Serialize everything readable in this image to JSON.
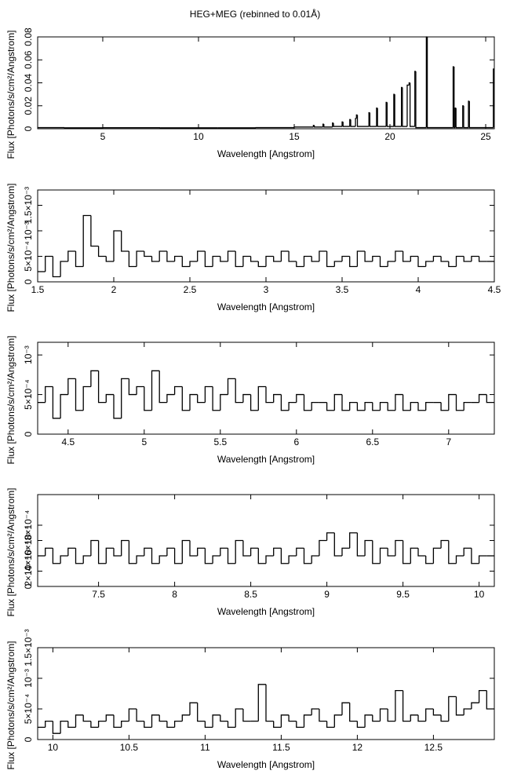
{
  "chart_data": [
    {
      "type": "line",
      "step": true,
      "title": "HEG+MEG (rebinned to 0.01Å)",
      "x_label": "Wavelength [Angstrom]",
      "y_label": "Flux [Photons/s/cm²/Angstrom]",
      "color": "#000000",
      "xlim": [
        1.6,
        25.45
      ],
      "ylim": [
        0,
        0.08
      ],
      "xticks": [
        5,
        10,
        15,
        20,
        25
      ],
      "yticks": [
        0,
        0.02,
        0.04,
        0.06,
        0.08
      ],
      "x": [
        1.6,
        3,
        5,
        8,
        11,
        13,
        15,
        16.0,
        16.05,
        16.5,
        16.55,
        17.0,
        17.05,
        17.5,
        17.55,
        17.9,
        17.95,
        18.2,
        18.25,
        18.3,
        18.9,
        18.95,
        19.3,
        19.35,
        19.8,
        19.85,
        20.2,
        20.25,
        20.6,
        20.65,
        20.9,
        21.0,
        21.05,
        21.3,
        21.35,
        21.9,
        21.95,
        23.3,
        23.35,
        23.4,
        23.45,
        23.8,
        23.85,
        24.1,
        24.15,
        25.4
      ],
      "values": [
        0.001,
        0.0008,
        0.0009,
        0.0008,
        0.0008,
        0.001,
        0.0015,
        0.003,
        0.0015,
        0.004,
        0.0015,
        0.005,
        0.002,
        0.006,
        0.002,
        0.008,
        0.002,
        0.009,
        0.012,
        0.002,
        0.014,
        0.002,
        0.018,
        0.002,
        0.023,
        0.002,
        0.03,
        0.002,
        0.036,
        0.002,
        0.038,
        0.04,
        0.002,
        0.05,
        0.001,
        0.08,
        0.001,
        0.054,
        0.001,
        0.018,
        0.001,
        0.02,
        0.001,
        0.024,
        0.001,
        0.052
      ]
    },
    {
      "type": "line",
      "step": true,
      "x_label": "Wavelength [Angstrom]",
      "y_label": "Flux [Photons/s/cm²/Angstrom]",
      "color": "#000000",
      "xlim": [
        1.5,
        4.5
      ],
      "ylim": [
        0,
        0.0018
      ],
      "xticks": [
        1.5,
        2,
        2.5,
        3,
        3.5,
        4,
        4.5
      ],
      "yticks": [
        0,
        {
          "value": 0.0005,
          "label": "5×10⁻⁴"
        },
        {
          "value": 0.001,
          "label": "10⁻³"
        },
        {
          "value": 0.0015,
          "label": "1.5×10⁻³"
        }
      ],
      "x": [
        1.5,
        1.55,
        1.6,
        1.65,
        1.7,
        1.75,
        1.8,
        1.85,
        1.9,
        1.95,
        2.0,
        2.05,
        2.1,
        2.15,
        2.2,
        2.25,
        2.3,
        2.35,
        2.4,
        2.45,
        2.5,
        2.55,
        2.6,
        2.65,
        2.7,
        2.75,
        2.8,
        2.85,
        2.9,
        2.95,
        3.0,
        3.05,
        3.1,
        3.15,
        3.2,
        3.25,
        3.3,
        3.35,
        3.4,
        3.45,
        3.5,
        3.55,
        3.6,
        3.65,
        3.7,
        3.75,
        3.8,
        3.85,
        3.9,
        3.95,
        4.0,
        4.05,
        4.1,
        4.15,
        4.2,
        4.25,
        4.3,
        4.35,
        4.4,
        4.45
      ],
      "values": [
        0.0002,
        0.0005,
        0.0001,
        0.0004,
        0.0006,
        0.0003,
        0.0013,
        0.0007,
        0.0005,
        0.0004,
        0.001,
        0.0006,
        0.0003,
        0.0006,
        0.0005,
        0.0004,
        0.0006,
        0.0004,
        0.0005,
        0.0003,
        0.0004,
        0.0006,
        0.0003,
        0.0005,
        0.0004,
        0.0006,
        0.0003,
        0.0005,
        0.0004,
        0.0003,
        0.0005,
        0.0004,
        0.0006,
        0.0004,
        0.0003,
        0.0005,
        0.0004,
        0.0006,
        0.0003,
        0.0004,
        0.0005,
        0.0003,
        0.0006,
        0.0004,
        0.0005,
        0.0003,
        0.0004,
        0.0006,
        0.0004,
        0.0005,
        0.0003,
        0.0004,
        0.0005,
        0.0004,
        0.0003,
        0.0005,
        0.0004,
        0.0005,
        0.0004,
        0.0004
      ]
    },
    {
      "type": "line",
      "step": true,
      "x_label": "Wavelength [Angstrom]",
      "y_label": "Flux [Photons/s/cm²/Angstrom]",
      "color": "#000000",
      "xlim": [
        4.3,
        7.3
      ],
      "ylim": [
        0,
        0.00116
      ],
      "xticks": [
        4.5,
        5,
        5.5,
        6,
        6.5,
        7
      ],
      "yticks": [
        0,
        {
          "value": 0.0005,
          "label": "5×10⁻⁴"
        },
        {
          "value": 0.001,
          "label": "10⁻³"
        }
      ],
      "x": [
        4.3,
        4.35,
        4.4,
        4.45,
        4.5,
        4.55,
        4.6,
        4.65,
        4.7,
        4.75,
        4.8,
        4.85,
        4.9,
        4.95,
        5.0,
        5.05,
        5.1,
        5.15,
        5.2,
        5.25,
        5.3,
        5.35,
        5.4,
        5.45,
        5.5,
        5.55,
        5.6,
        5.65,
        5.7,
        5.75,
        5.8,
        5.85,
        5.9,
        5.95,
        6.0,
        6.05,
        6.1,
        6.15,
        6.2,
        6.25,
        6.3,
        6.35,
        6.4,
        6.45,
        6.5,
        6.55,
        6.6,
        6.65,
        6.7,
        6.75,
        6.8,
        6.85,
        6.9,
        6.95,
        7.0,
        7.05,
        7.1,
        7.15,
        7.2,
        7.25
      ],
      "values": [
        0.0004,
        0.0006,
        0.0002,
        0.0005,
        0.0007,
        0.0003,
        0.0006,
        0.0008,
        0.0004,
        0.0005,
        0.0002,
        0.0007,
        0.0005,
        0.0006,
        0.0003,
        0.0008,
        0.0004,
        0.0005,
        0.0006,
        0.0003,
        0.0005,
        0.0004,
        0.0006,
        0.0003,
        0.0005,
        0.0007,
        0.0004,
        0.0005,
        0.0003,
        0.0006,
        0.0004,
        0.0005,
        0.0003,
        0.0004,
        0.0005,
        0.0003,
        0.0004,
        0.0004,
        0.0003,
        0.0005,
        0.0003,
        0.0004,
        0.0003,
        0.0004,
        0.0003,
        0.0004,
        0.0003,
        0.0005,
        0.0003,
        0.0004,
        0.0003,
        0.0004,
        0.0004,
        0.0003,
        0.0005,
        0.0003,
        0.0004,
        0.0004,
        0.0005,
        0.0004
      ]
    },
    {
      "type": "line",
      "step": true,
      "x_label": "Wavelength [Angstrom]",
      "y_label": "Flux [Photons/s/cm²/Angstrom]",
      "color": "#000000",
      "xlim": [
        7.1,
        10.1
      ],
      "ylim": [
        0,
        0.0012
      ],
      "xticks": [
        7.5,
        8,
        8.5,
        9,
        9.5,
        10
      ],
      "yticks": [
        0,
        {
          "value": 0.0002,
          "label": "2×10⁻⁴"
        },
        {
          "value": 0.0004,
          "label": "4×10⁻⁴"
        },
        {
          "value": 0.0006,
          "label": "6×10⁻⁴"
        },
        {
          "value": 0.0008,
          "label": "8×10⁻⁴"
        }
      ],
      "x": [
        7.1,
        7.15,
        7.2,
        7.25,
        7.3,
        7.35,
        7.4,
        7.45,
        7.5,
        7.55,
        7.6,
        7.65,
        7.7,
        7.75,
        7.8,
        7.85,
        7.9,
        7.95,
        8.0,
        8.05,
        8.1,
        8.15,
        8.2,
        8.25,
        8.3,
        8.35,
        8.4,
        8.45,
        8.5,
        8.55,
        8.6,
        8.65,
        8.7,
        8.75,
        8.8,
        8.85,
        8.9,
        8.95,
        9.0,
        9.05,
        9.1,
        9.15,
        9.2,
        9.25,
        9.3,
        9.35,
        9.4,
        9.45,
        9.5,
        9.55,
        9.6,
        9.65,
        9.7,
        9.75,
        9.8,
        9.85,
        9.9,
        9.95,
        10.0,
        10.05
      ],
      "values": [
        0.0004,
        0.0005,
        0.0003,
        0.0004,
        0.0005,
        0.0003,
        0.0004,
        0.0006,
        0.0003,
        0.0005,
        0.0004,
        0.0006,
        0.0003,
        0.0004,
        0.0005,
        0.0003,
        0.0004,
        0.0005,
        0.0003,
        0.0006,
        0.0004,
        0.0005,
        0.0003,
        0.0004,
        0.0005,
        0.0003,
        0.0006,
        0.0004,
        0.0005,
        0.0003,
        0.0004,
        0.0005,
        0.0003,
        0.0004,
        0.0005,
        0.0003,
        0.0004,
        0.0006,
        0.0007,
        0.0004,
        0.0005,
        0.0007,
        0.0004,
        0.0006,
        0.0003,
        0.0005,
        0.0004,
        0.0006,
        0.0003,
        0.0005,
        0.0004,
        0.0003,
        0.0005,
        0.0006,
        0.0003,
        0.0004,
        0.0005,
        0.0003,
        0.0004,
        0.0004
      ]
    },
    {
      "type": "line",
      "step": true,
      "x_label": "Wavelength [Angstrom]",
      "y_label": "Flux [Photons/s/cm²/Angstrom]",
      "color": "#000000",
      "xlim": [
        9.9,
        12.9
      ],
      "ylim": [
        0,
        0.0015
      ],
      "xticks": [
        10,
        10.5,
        11,
        11.5,
        12,
        12.5
      ],
      "yticks": [
        0,
        {
          "value": 0.0005,
          "label": "5×10⁻⁴"
        },
        {
          "value": 0.001,
          "label": "10⁻³"
        },
        {
          "value": 0.0015,
          "label": "1.5×10⁻³"
        }
      ],
      "x": [
        9.9,
        9.95,
        10.0,
        10.05,
        10.1,
        10.15,
        10.2,
        10.25,
        10.3,
        10.35,
        10.4,
        10.45,
        10.5,
        10.55,
        10.6,
        10.65,
        10.7,
        10.75,
        10.8,
        10.85,
        10.9,
        10.95,
        11.0,
        11.05,
        11.1,
        11.15,
        11.2,
        11.25,
        11.3,
        11.35,
        11.4,
        11.45,
        11.5,
        11.55,
        11.6,
        11.65,
        11.7,
        11.75,
        11.8,
        11.85,
        11.9,
        11.95,
        12.0,
        12.05,
        12.1,
        12.15,
        12.2,
        12.25,
        12.3,
        12.35,
        12.4,
        12.45,
        12.5,
        12.55,
        12.6,
        12.65,
        12.7,
        12.75,
        12.8,
        12.85
      ],
      "values": [
        0.0002,
        0.0003,
        0.0001,
        0.0003,
        0.0002,
        0.0004,
        0.0003,
        0.0002,
        0.0003,
        0.0004,
        0.0002,
        0.0003,
        0.0005,
        0.0003,
        0.0002,
        0.0004,
        0.0003,
        0.0002,
        0.0003,
        0.0004,
        0.0006,
        0.0003,
        0.0002,
        0.0004,
        0.0003,
        0.0002,
        0.0005,
        0.0003,
        0.0003,
        0.0009,
        0.0003,
        0.0002,
        0.0004,
        0.0003,
        0.0002,
        0.0004,
        0.0005,
        0.0003,
        0.0002,
        0.0004,
        0.0006,
        0.0003,
        0.0002,
        0.0004,
        0.0003,
        0.0005,
        0.0003,
        0.0008,
        0.0003,
        0.0004,
        0.0003,
        0.0005,
        0.0004,
        0.0003,
        0.0007,
        0.0004,
        0.0005,
        0.0006,
        0.0008,
        0.0005
      ]
    }
  ]
}
